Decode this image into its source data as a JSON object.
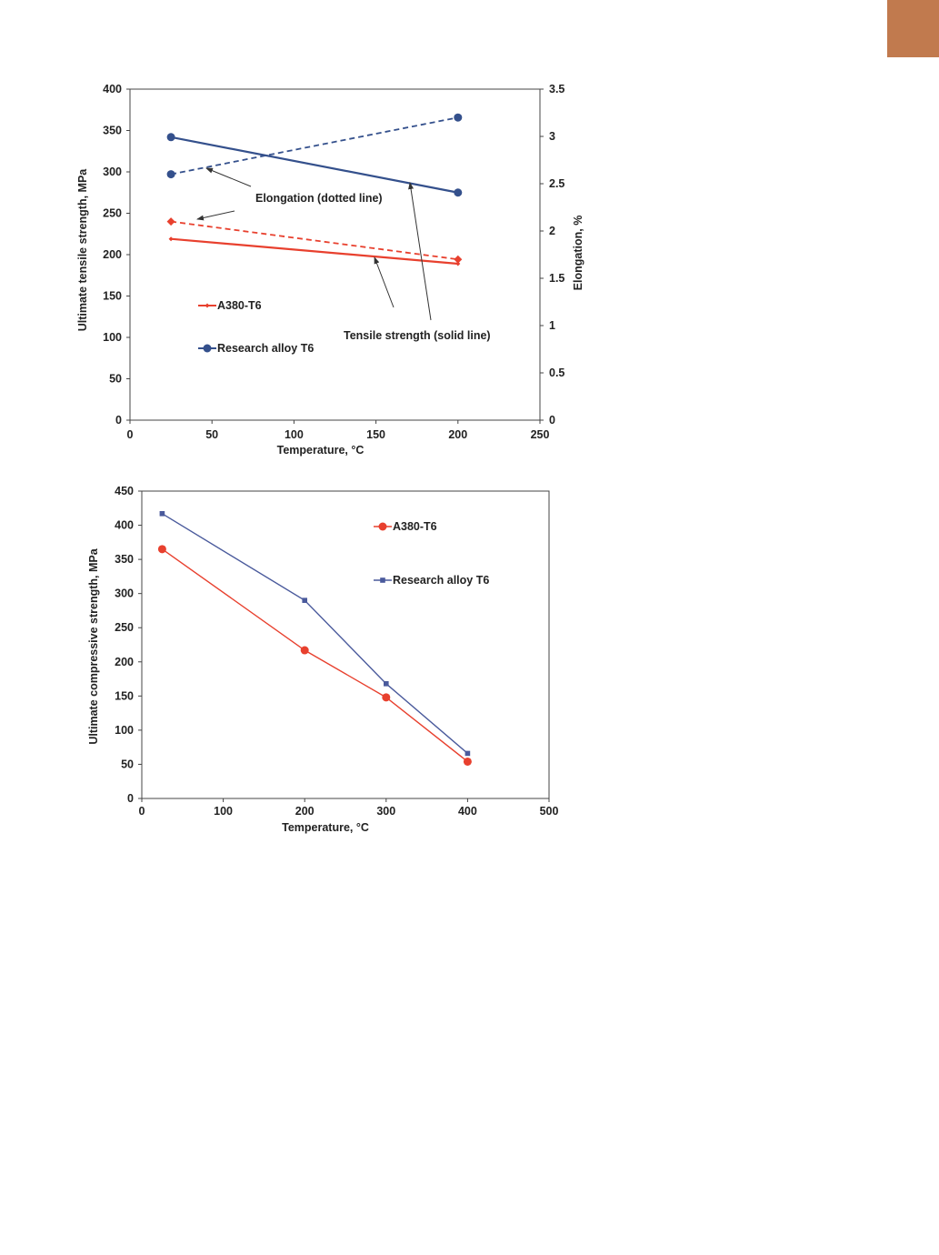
{
  "page": {
    "corner_tab_color": "#c17a4e"
  },
  "chart_data": [
    {
      "type": "line",
      "xlabel": "Temperature, °C",
      "ylabel": "Ultimate tensile strength, MPa",
      "y2label": "Elongation, %",
      "xlim": [
        0,
        250
      ],
      "ylim": [
        0,
        400
      ],
      "y2lim": [
        0,
        3.5
      ],
      "xticks": [
        "0",
        "50",
        "100",
        "150",
        "200",
        "250"
      ],
      "yticks": [
        "0",
        "50",
        "100",
        "150",
        "200",
        "250",
        "300",
        "350",
        "400"
      ],
      "y2ticks": [
        "0",
        "0.5",
        "1",
        "1.5",
        "2",
        "2.5",
        "3",
        "3.5"
      ],
      "grid": false,
      "series": [
        {
          "name": "A380-T6",
          "measure": "tensile",
          "axis": "left",
          "style": "solid",
          "marker": "diamond",
          "color": "#e8402e",
          "x": [
            25,
            200
          ],
          "y": [
            219,
            189
          ]
        },
        {
          "name": "Research alloy T6",
          "measure": "tensile",
          "axis": "left",
          "style": "solid",
          "marker": "circle",
          "color": "#34508c",
          "x": [
            25,
            200
          ],
          "y": [
            342,
            275
          ]
        },
        {
          "name": "A380-T6",
          "measure": "elongation",
          "axis": "right",
          "style": "dashed",
          "marker": "diamond",
          "color": "#e8402e",
          "x": [
            25,
            200
          ],
          "y": [
            2.1,
            1.7
          ]
        },
        {
          "name": "Research alloy T6",
          "measure": "elongation",
          "axis": "right",
          "style": "dashed",
          "marker": "circle",
          "color": "#34508c",
          "x": [
            25,
            200
          ],
          "y": [
            2.6,
            3.2
          ]
        }
      ],
      "legend": {
        "position": "lower-left",
        "entries": [
          "A380-T6",
          "Research alloy T6"
        ]
      },
      "annotations": [
        "Elongation (dotted line)",
        "Tensile strength (solid line)"
      ]
    },
    {
      "type": "line",
      "xlabel": "Temperature, °C",
      "ylabel": "Ultimate compressive strength, MPa",
      "xlim": [
        0,
        500
      ],
      "ylim": [
        0,
        450
      ],
      "xticks": [
        "0",
        "100",
        "200",
        "300",
        "400",
        "500"
      ],
      "yticks": [
        "0",
        "50",
        "100",
        "150",
        "200",
        "250",
        "300",
        "350",
        "400",
        "450"
      ],
      "grid": false,
      "series": [
        {
          "name": "A380-T6",
          "marker": "circle",
          "color": "#e8402e",
          "x": [
            25,
            200,
            300,
            400
          ],
          "y": [
            365,
            217,
            148,
            54
          ]
        },
        {
          "name": "Research alloy T6",
          "marker": "square",
          "color": "#4a5a9c",
          "x": [
            25,
            200,
            300,
            400
          ],
          "y": [
            417,
            290,
            168,
            66
          ]
        }
      ],
      "legend": {
        "position": "top-right",
        "entries": [
          "A380-T6",
          "Research alloy T6"
        ]
      }
    }
  ]
}
